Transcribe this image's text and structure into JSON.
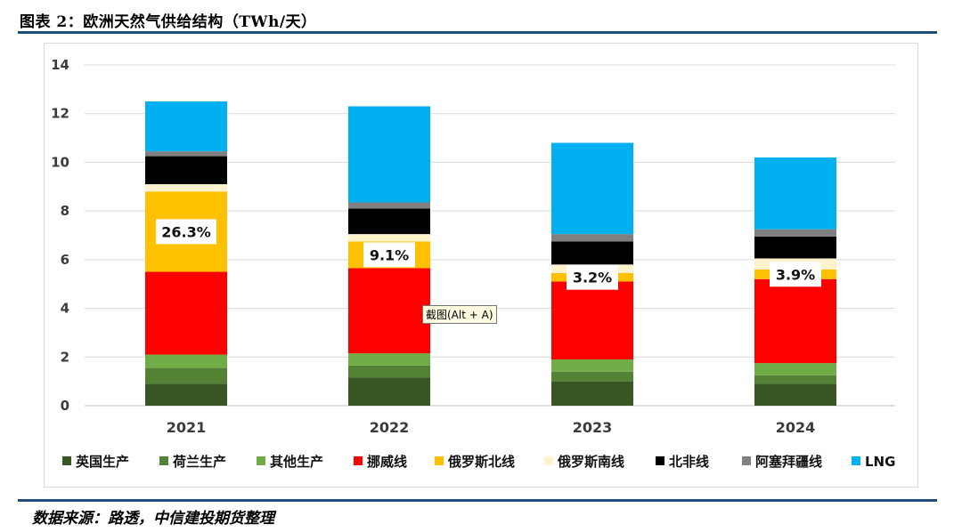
{
  "figure_title": "图表 2：欧洲天然气供给结构（TWh/天）",
  "source_note": "数据来源：路透，中信建投期货整理",
  "tooltip": "截图(Alt + A)",
  "chart_data": {
    "type": "bar",
    "stacked": true,
    "categories": [
      "2021",
      "2022",
      "2023",
      "2024"
    ],
    "ylim": [
      0,
      14
    ],
    "yticks": [
      0,
      2,
      4,
      6,
      8,
      10,
      12,
      14
    ],
    "grid": true,
    "legend_position": "bottom",
    "series": [
      {
        "name": "英国生产",
        "color": "#375623",
        "values": [
          0.9,
          1.15,
          1.0,
          0.9
        ]
      },
      {
        "name": "荷兰生产",
        "color": "#548235",
        "values": [
          0.65,
          0.5,
          0.4,
          0.35
        ]
      },
      {
        "name": "其他生产",
        "color": "#70ad47",
        "values": [
          0.55,
          0.5,
          0.5,
          0.5
        ]
      },
      {
        "name": "挪威线",
        "color": "#ff0000",
        "values": [
          3.4,
          3.5,
          3.2,
          3.45
        ]
      },
      {
        "name": "俄罗斯北线",
        "color": "#ffc000",
        "values": [
          3.3,
          1.1,
          0.35,
          0.4
        ]
      },
      {
        "name": "俄罗斯南线",
        "color": "#fff2cc",
        "values": [
          0.3,
          0.3,
          0.35,
          0.45
        ]
      },
      {
        "name": "北非线",
        "color": "#000000",
        "values": [
          1.15,
          1.05,
          0.95,
          0.9
        ]
      },
      {
        "name": "阿塞拜疆线",
        "color": "#808080",
        "values": [
          0.2,
          0.25,
          0.3,
          0.3
        ]
      },
      {
        "name": "LNG",
        "color": "#00b0f0",
        "values": [
          2.05,
          3.95,
          3.75,
          2.95
        ]
      }
    ],
    "annotations": [
      "26.3%",
      "9.1%",
      "3.2%",
      "3.9%"
    ]
  }
}
